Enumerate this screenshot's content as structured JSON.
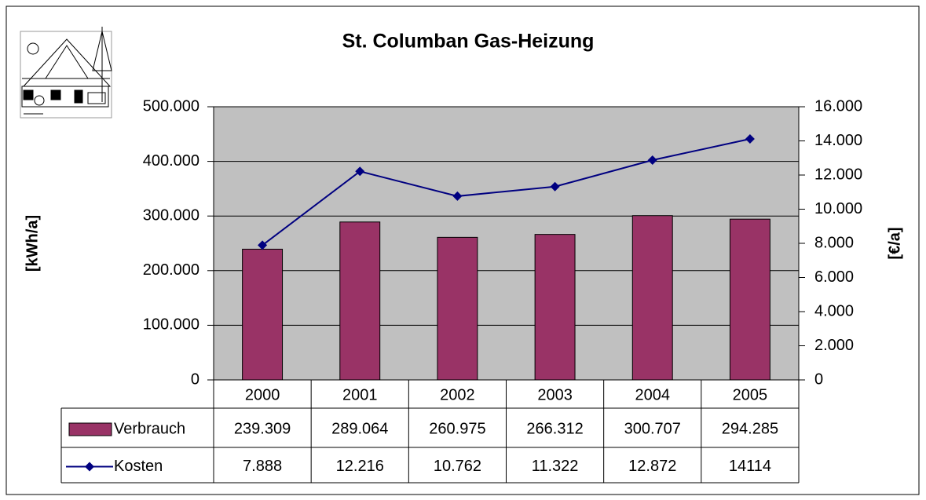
{
  "chart_data": {
    "type": "bar",
    "title": "St. Columban Gas-Heizung",
    "y_label": "[kWh/a]",
    "y2_label": "[€/a]",
    "categories": [
      "2000",
      "2001",
      "2002",
      "2003",
      "2004",
      "2005"
    ],
    "series": [
      {
        "name": "Verbrauch",
        "type": "bar",
        "color": "#993366",
        "values": [
          239309,
          289064,
          260975,
          266312,
          300707,
          294285
        ],
        "value_labels": [
          "239.309",
          "289.064",
          "260.975",
          "266.312",
          "300.707",
          "294.285"
        ]
      },
      {
        "name": "Kosten",
        "type": "line",
        "axis": "y2",
        "color": "#000080",
        "values": [
          7888,
          12216,
          10762,
          11322,
          12872,
          14114
        ],
        "value_labels": [
          "7.888",
          "12.216",
          "10.762",
          "11.322",
          "12.872",
          "14114"
        ]
      }
    ],
    "ylim": [
      0,
      500000
    ],
    "yticks": [
      0,
      {
        "value": 100000,
        "label": "100.000"
      },
      {
        "value": 200000,
        "label": "200.000"
      },
      {
        "value": 300000,
        "label": "300.000"
      },
      {
        "value": 400000,
        "label": "400.000"
      },
      {
        "value": 500000,
        "label": "500.000"
      }
    ],
    "y2lim": [
      0,
      16000
    ],
    "y2ticks": [
      0,
      {
        "value": 2000,
        "label": "2.000"
      },
      {
        "value": 4000,
        "label": "4.000"
      },
      {
        "value": 6000,
        "label": "6.000"
      },
      {
        "value": 8000,
        "label": "8.000"
      },
      {
        "value": 10000,
        "label": "10.000"
      },
      {
        "value": 12000,
        "label": "12.000"
      },
      {
        "value": 14000,
        "label": "14.000"
      },
      {
        "value": 16000,
        "label": "16.000"
      }
    ],
    "grid": true,
    "plot_background": "#c0c0c0"
  }
}
